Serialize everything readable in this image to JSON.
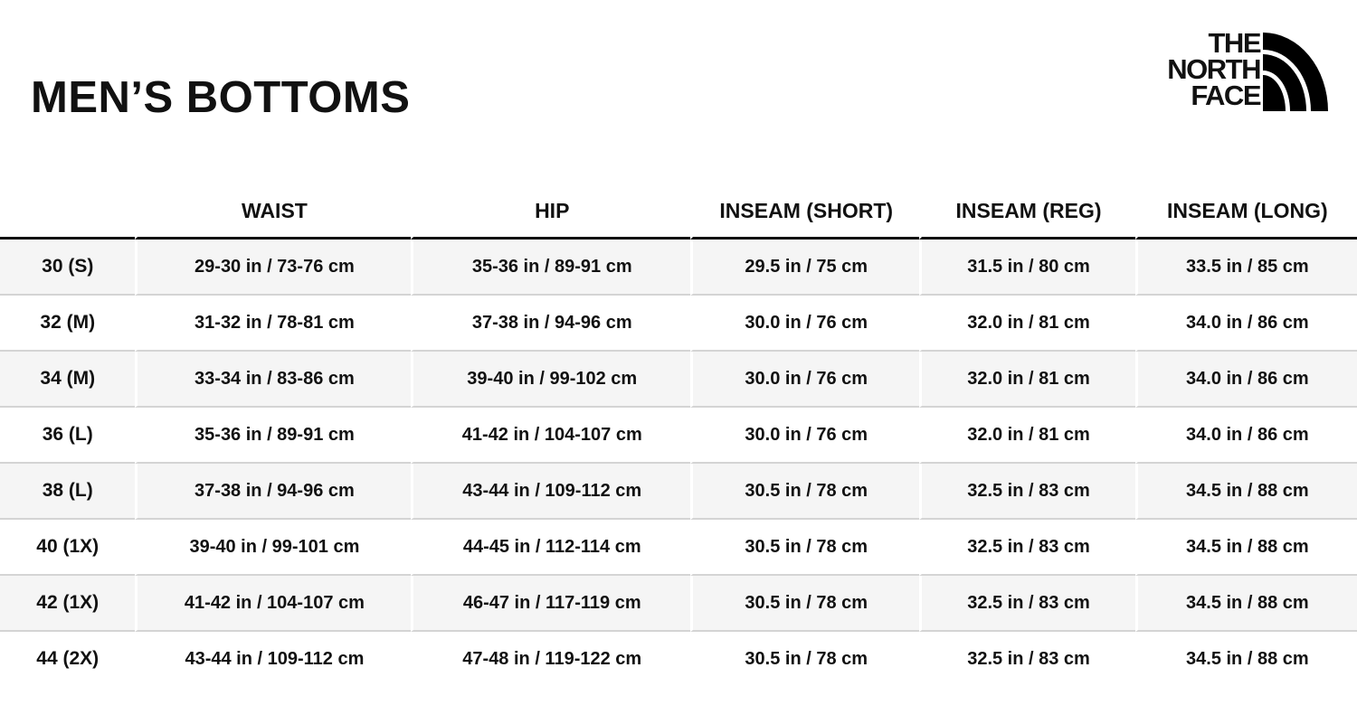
{
  "title": "MEN’S BOTTOMS",
  "logo": {
    "text": "THE NORTH FACE",
    "lines": [
      "THE",
      "NORTH",
      "FACE"
    ]
  },
  "table": {
    "headers": [
      "",
      "WAIST",
      "HIP",
      "INSEAM (SHORT)",
      "INSEAM (REG)",
      "INSEAM (LONG)"
    ],
    "rows": [
      [
        "30 (S)",
        "29-30 in / 73-76 cm",
        "35-36 in / 89-91 cm",
        "29.5 in / 75 cm",
        "31.5 in / 80 cm",
        "33.5 in / 85 cm"
      ],
      [
        "32 (M)",
        "31-32 in / 78-81 cm",
        "37-38 in / 94-96 cm",
        "30.0 in / 76 cm",
        "32.0 in / 81 cm",
        "34.0 in / 86 cm"
      ],
      [
        "34 (M)",
        "33-34 in / 83-86 cm",
        "39-40 in / 99-102 cm",
        "30.0 in / 76 cm",
        "32.0 in / 81 cm",
        "34.0 in / 86 cm"
      ],
      [
        "36 (L)",
        "35-36 in / 89-91 cm",
        "41-42 in / 104-107 cm",
        "30.0 in / 76 cm",
        "32.0 in / 81 cm",
        "34.0 in / 86 cm"
      ],
      [
        "38 (L)",
        "37-38 in / 94-96 cm",
        "43-44 in / 109-112 cm",
        "30.5 in / 78 cm",
        "32.5 in / 83 cm",
        "34.5 in / 88 cm"
      ],
      [
        "40 (1X)",
        "39-40 in / 99-101 cm",
        "44-45 in / 112-114 cm",
        "30.5 in / 78 cm",
        "32.5 in / 83 cm",
        "34.5 in / 88 cm"
      ],
      [
        "42 (1X)",
        "41-42 in / 104-107 cm",
        "46-47 in / 117-119 cm",
        "30.5 in / 78 cm",
        "32.5 in / 83 cm",
        "34.5 in / 88 cm"
      ],
      [
        "44 (2X)",
        "43-44 in / 109-112 cm",
        "47-48 in / 119-122 cm",
        "30.5 in / 78 cm",
        "32.5 in / 83 cm",
        "34.5 in / 88 cm"
      ]
    ]
  },
  "colors": {
    "text": "#111111",
    "stripe": "#f5f5f5",
    "divider": "#d4d4d4"
  }
}
